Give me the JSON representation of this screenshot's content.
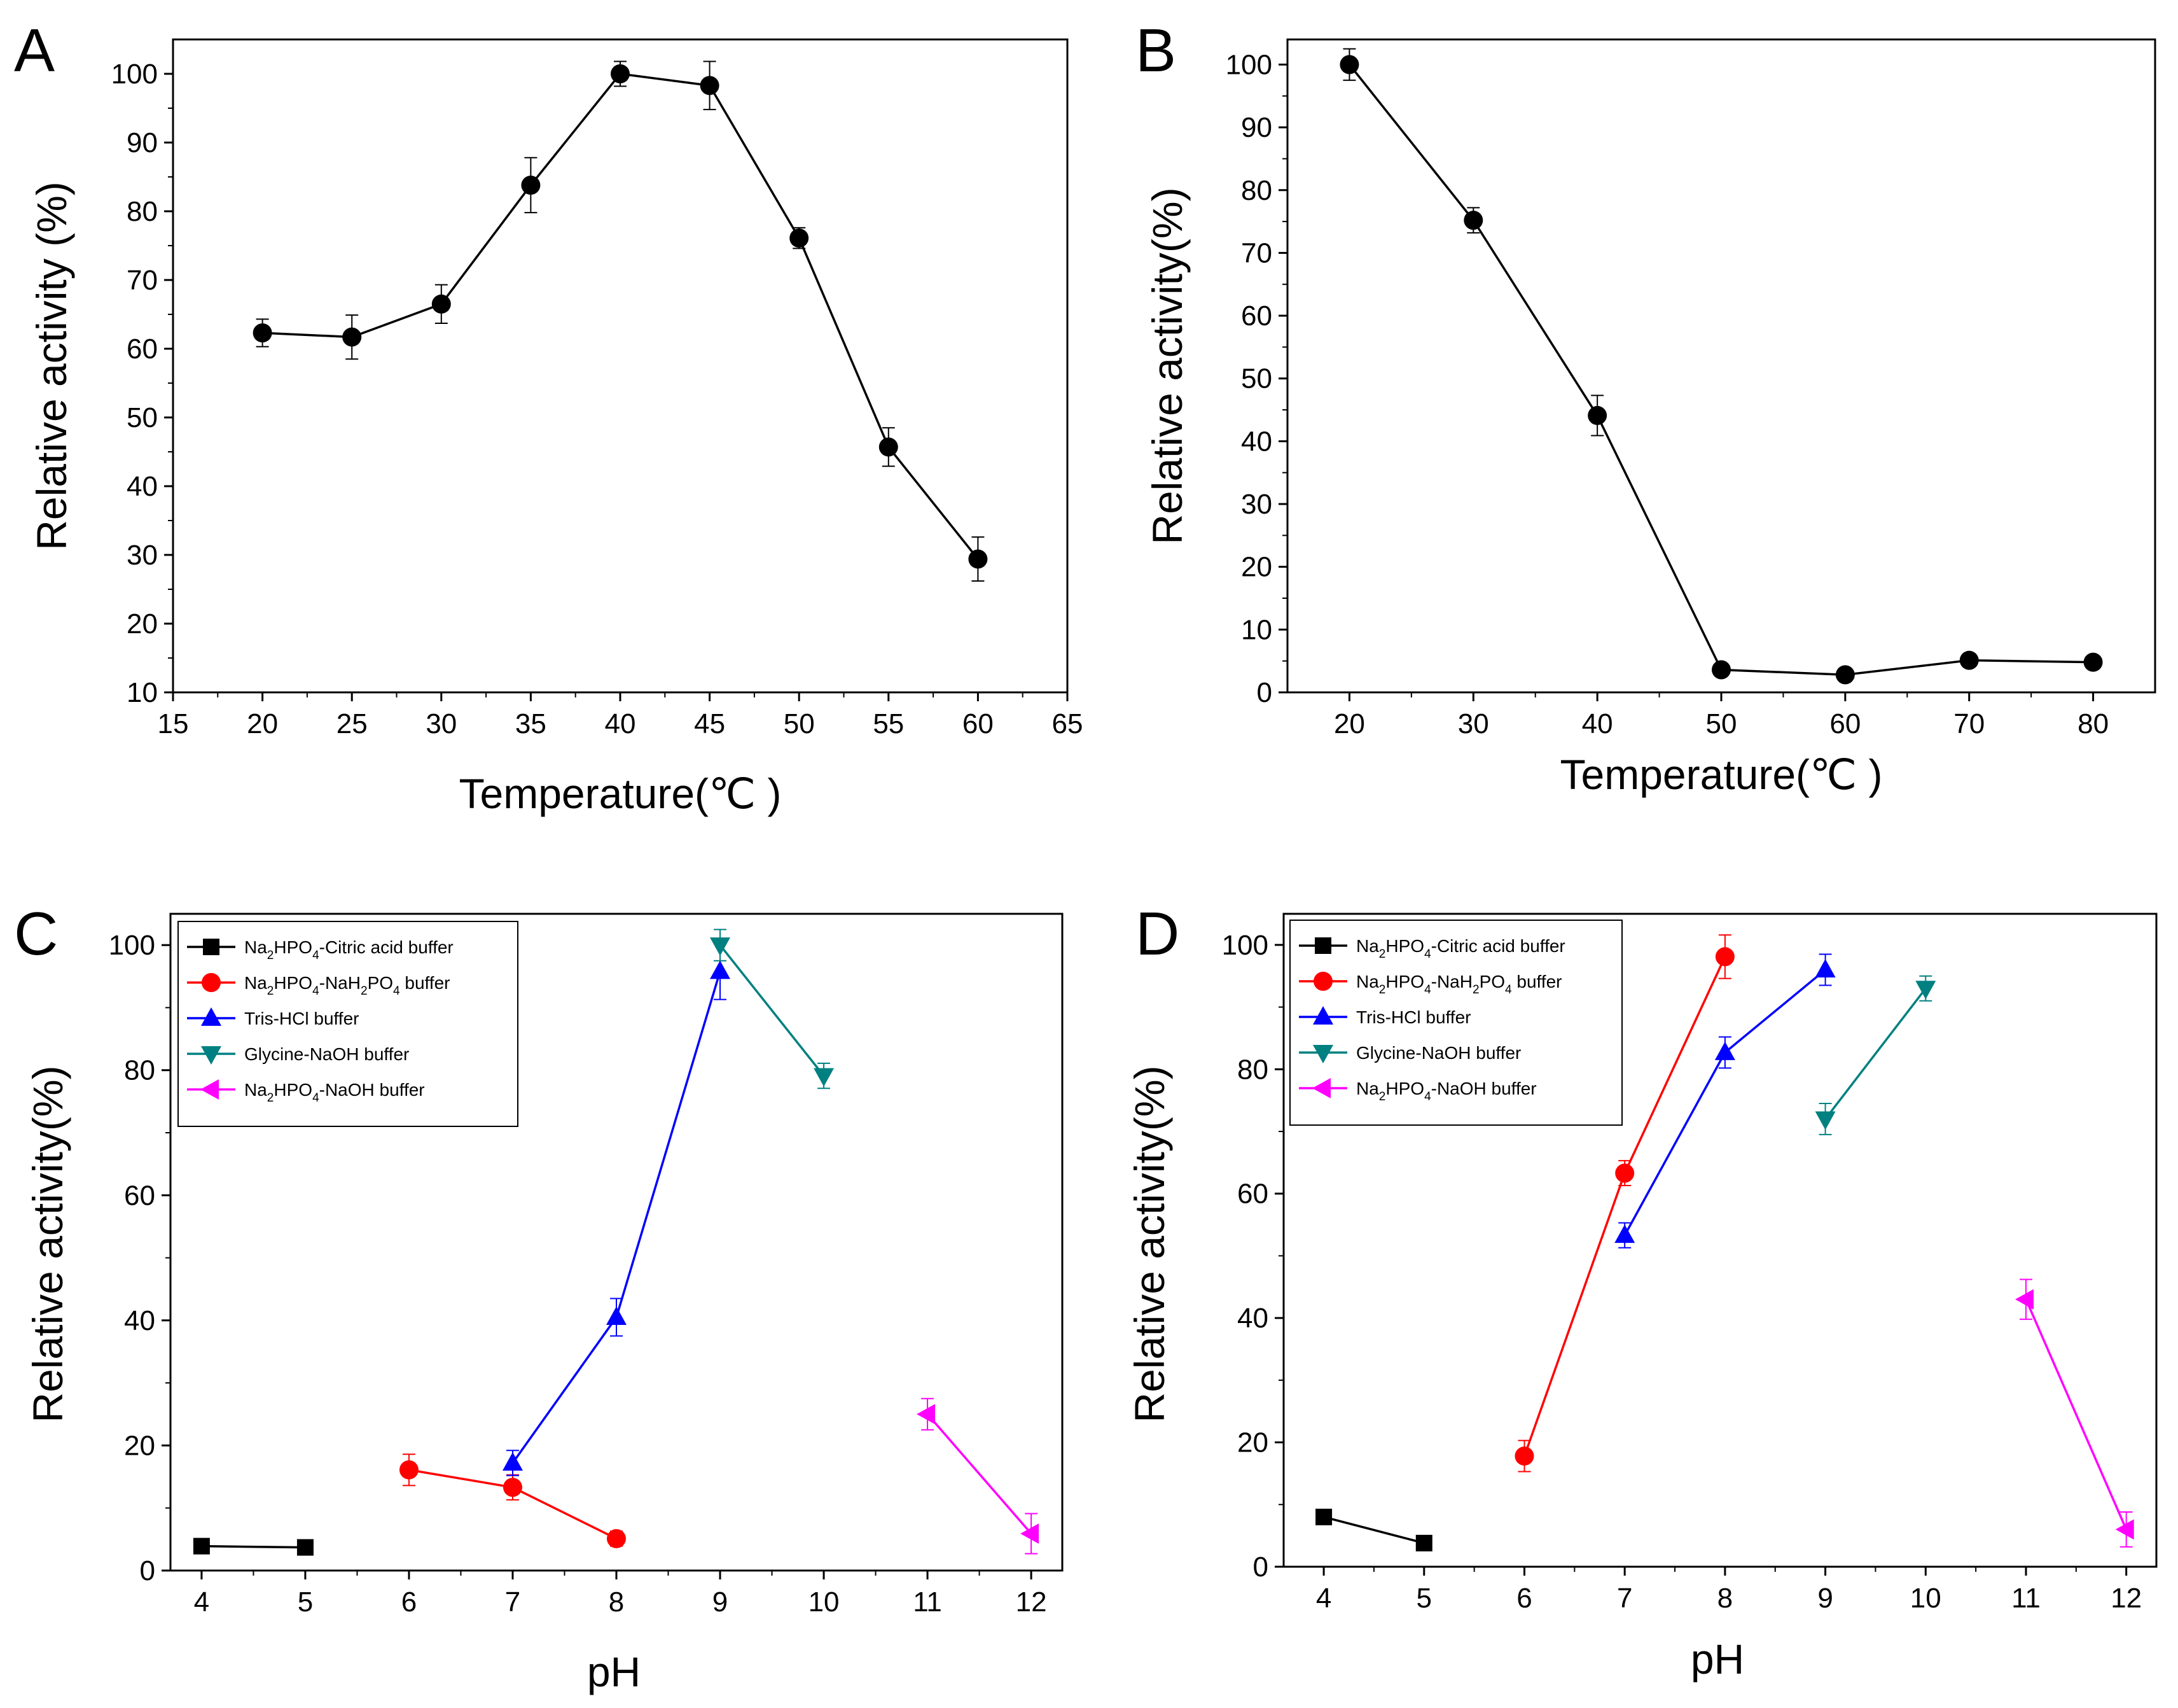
{
  "figure": {
    "panel_letters": [
      "A",
      "B",
      "C",
      "D"
    ]
  },
  "chart_data": [
    {
      "panel": "A",
      "type": "line",
      "title": "",
      "xlabel": "Temperature(℃ )",
      "ylabel": "Relative activity (%)",
      "xlim": [
        15,
        65
      ],
      "ylim": [
        10,
        105
      ],
      "xticks": [
        15,
        20,
        25,
        30,
        35,
        40,
        45,
        50,
        55,
        60,
        65
      ],
      "yticks": [
        10,
        20,
        30,
        40,
        50,
        60,
        70,
        80,
        90,
        100
      ],
      "grid": false,
      "series": [
        {
          "name": "Relative activity",
          "color": "#000000",
          "marker": "circle",
          "x": [
            20,
            25,
            30,
            35,
            40,
            45,
            50,
            55,
            60
          ],
          "values": [
            62.3,
            61.7,
            66.5,
            83.8,
            100,
            98.3,
            76.1,
            45.7,
            29.4
          ],
          "errors": [
            2.0,
            3.2,
            2.8,
            4.0,
            1.8,
            3.5,
            1.5,
            2.8,
            3.2
          ]
        }
      ]
    },
    {
      "panel": "B",
      "type": "line",
      "title": "",
      "xlabel": "Temperature(℃ )",
      "ylabel": "Relative activity(%)",
      "xlim": [
        15,
        85
      ],
      "ylim": [
        0,
        104
      ],
      "xticks": [
        20,
        30,
        40,
        50,
        60,
        70,
        80
      ],
      "yticks": [
        0,
        10,
        20,
        30,
        40,
        50,
        60,
        70,
        80,
        90,
        100
      ],
      "grid": false,
      "series": [
        {
          "name": "Relative activity",
          "color": "#000000",
          "marker": "circle",
          "x": [
            20,
            30,
            40,
            50,
            60,
            70,
            80
          ],
          "values": [
            100,
            75.2,
            44.1,
            3.6,
            2.8,
            5.1,
            4.8
          ],
          "errors": [
            2.5,
            2.0,
            3.2,
            0.5,
            0.5,
            0.5,
            0.5
          ]
        }
      ]
    },
    {
      "panel": "C",
      "type": "line",
      "title": "",
      "xlabel": "pH",
      "ylabel": "Relative activity(%)",
      "xlim": [
        3.7,
        12.3
      ],
      "ylim": [
        0,
        105
      ],
      "xticks": [
        4,
        5,
        6,
        7,
        8,
        9,
        10,
        11,
        12
      ],
      "yticks": [
        0,
        20,
        40,
        60,
        80,
        100
      ],
      "grid": false,
      "legend_position": "top-left",
      "series": [
        {
          "name": "Na2HPO4-Citric acid buffer",
          "label_parts": [
            "Na",
            "2",
            "HPO",
            "4",
            "-Citric acid buffer"
          ],
          "color": "#000000",
          "marker": "square",
          "x": [
            4,
            5
          ],
          "values": [
            3.9,
            3.7
          ],
          "errors": [
            0,
            0
          ]
        },
        {
          "name": "Na2HPO4-NaH2PO4 buffer",
          "label_parts": [
            "Na",
            "2",
            "HPO",
            "4",
            "-NaH",
            "2",
            "PO",
            "4",
            " buffer"
          ],
          "color": "#ff0000",
          "marker": "circle",
          "x": [
            6,
            7,
            8
          ],
          "values": [
            16.1,
            13.3,
            5.1
          ],
          "errors": [
            2.5,
            2.0,
            1.2
          ]
        },
        {
          "name": "Tris-HCl buffer",
          "label_parts": [
            "Tris-HCl buffer"
          ],
          "color": "#0000ff",
          "marker": "triangle-up",
          "x": [
            7,
            8,
            9
          ],
          "values": [
            17.2,
            40.5,
            95.8
          ],
          "errors": [
            2.0,
            3.0,
            4.5
          ]
        },
        {
          "name": "Glycine-NaOH buffer",
          "label_parts": [
            "Glycine-NaOH buffer"
          ],
          "color": "#008080",
          "marker": "triangle-down",
          "x": [
            9,
            10
          ],
          "values": [
            100,
            79.1
          ],
          "errors": [
            2.5,
            2.0
          ]
        },
        {
          "name": "Na2HPO4-NaOH buffer",
          "label_parts": [
            "Na",
            "2",
            "HPO",
            "4",
            "-NaOH buffer"
          ],
          "color": "#ff00ff",
          "marker": "triangle-left",
          "x": [
            11,
            12
          ],
          "values": [
            25.0,
            5.9
          ],
          "errors": [
            2.5,
            3.2
          ]
        }
      ]
    },
    {
      "panel": "D",
      "type": "line",
      "title": "",
      "xlabel": "pH",
      "ylabel": "Relative activity(%)",
      "xlim": [
        3.6,
        12.3
      ],
      "ylim": [
        0,
        105
      ],
      "xticks": [
        4,
        5,
        6,
        7,
        8,
        9,
        10,
        11,
        12
      ],
      "yticks": [
        0,
        20,
        40,
        60,
        80,
        100
      ],
      "grid": false,
      "legend_position": "top-left",
      "series": [
        {
          "name": "Na2HPO4-Citric acid buffer",
          "label_parts": [
            "Na",
            "2",
            "HPO",
            "4",
            "-Citric acid buffer"
          ],
          "color": "#000000",
          "marker": "square",
          "x": [
            4,
            5
          ],
          "values": [
            8.0,
            3.8
          ],
          "errors": [
            0,
            0
          ]
        },
        {
          "name": "Na2HPO4-NaH2PO4 buffer",
          "label_parts": [
            "Na",
            "2",
            "HPO",
            "4",
            "-NaH",
            "2",
            "PO",
            "4",
            " buffer"
          ],
          "color": "#ff0000",
          "marker": "circle",
          "x": [
            6,
            7,
            8
          ],
          "values": [
            17.8,
            63.3,
            98.1
          ],
          "errors": [
            2.5,
            2.0,
            3.5
          ]
        },
        {
          "name": "Tris-HCl buffer",
          "label_parts": [
            "Tris-HCl buffer"
          ],
          "color": "#0000ff",
          "marker": "triangle-up",
          "x": [
            7,
            8,
            9
          ],
          "values": [
            53.3,
            82.7,
            96.0
          ],
          "errors": [
            2.0,
            2.5,
            2.5
          ]
        },
        {
          "name": "Glycine-NaOH buffer",
          "label_parts": [
            "Glycine-NaOH buffer"
          ],
          "color": "#008080",
          "marker": "triangle-down",
          "x": [
            9,
            10
          ],
          "values": [
            72.0,
            93.0
          ],
          "errors": [
            2.5,
            2.0
          ]
        },
        {
          "name": "Na2HPO4-NaOH buffer",
          "label_parts": [
            "Na",
            "2",
            "HPO",
            "4",
            "-NaOH buffer"
          ],
          "color": "#ff00ff",
          "marker": "triangle-left",
          "x": [
            11,
            12
          ],
          "values": [
            43.0,
            6.0
          ],
          "errors": [
            3.2,
            2.8
          ]
        }
      ]
    }
  ]
}
